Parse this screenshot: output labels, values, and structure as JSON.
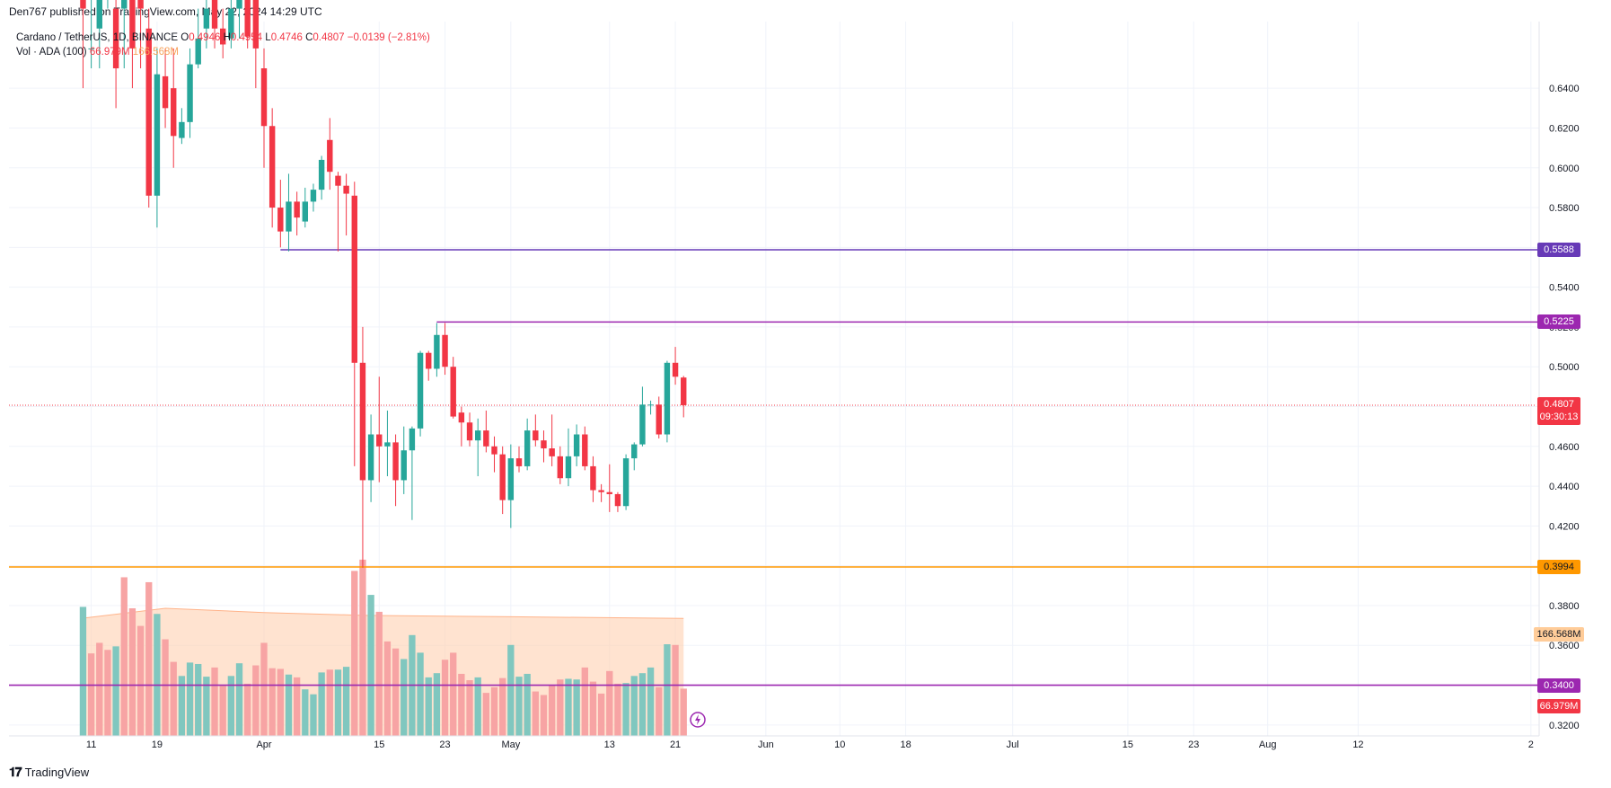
{
  "header": {
    "published": "Den767 published on TradingView.com, May 22, 2024 14:29 UTC"
  },
  "legend": {
    "symbol": "Cardano / TetherUS, 1D, BINANCE",
    "o_label": "O",
    "o_value": "0.4946",
    "h_label": "H",
    "h_value": "0.4954",
    "l_label": "L",
    "l_value": "0.4746",
    "c_label": "C",
    "c_value": "0.4807",
    "change": "−0.0139 (−2.81%)",
    "volume_label": "Vol · ADA (100)",
    "volume_value": "66.979M",
    "volume_ma": "166.568M"
  },
  "footer": {
    "brand": "TradingView"
  },
  "colors": {
    "up": "#26a69a",
    "down": "#f23645",
    "grid": "#f0f3fa",
    "line_5588": "#673ab7",
    "line_5225": "#9c27b0",
    "line_3994": "#ff9800",
    "line_3400": "#9c27b0",
    "vol_up": "#80c7bf",
    "vol_down": "#f7a4a4",
    "vol_ma_fill": "#ffd0b0",
    "price_line": "#f23645"
  },
  "tags": {
    "t5588": "0.5588",
    "t5225": "0.5225",
    "t_last": "0.4807",
    "t_countdown": "09:30:13",
    "t3994": "0.3994",
    "t_volma": "166.568M",
    "t3400": "0.3400",
    "t_vol": "66.979M"
  },
  "chart_data": {
    "type": "candlestick",
    "symbol": "Cardano / TetherUS",
    "interval": "1D",
    "exchange": "BINANCE",
    "y_axis_ticks": [
      0.32,
      0.34,
      0.36,
      0.38,
      0.4,
      0.42,
      0.44,
      0.46,
      0.48,
      0.5,
      0.52,
      0.54,
      0.56,
      0.58,
      0.6,
      0.62,
      0.64
    ],
    "y_tick_labels": [
      "0.3200",
      "0.3400",
      "0.3600",
      "0.3800",
      "0.4000",
      "0.4200",
      "0.4400",
      "0.4600",
      "0.4800",
      "0.5000",
      "0.5200",
      "0.5400",
      "0.5600",
      "0.5800",
      "0.6000",
      "0.6200",
      "0.6400"
    ],
    "ylim": [
      0.3145,
      0.6735
    ],
    "x_tick_labels": [
      "11",
      "19",
      "Apr",
      "15",
      "23",
      "May",
      "13",
      "21",
      "Jun",
      "10",
      "18",
      "Jul",
      "15",
      "23",
      "Aug",
      "12",
      "2"
    ],
    "x_tick_dates": [
      "2024-03-11",
      "2024-03-19",
      "2024-04-01",
      "2024-04-15",
      "2024-04-23",
      "2024-05-01",
      "2024-05-13",
      "2024-05-21",
      "2024-06-01",
      "2024-06-10",
      "2024-06-18",
      "2024-07-01",
      "2024-07-15",
      "2024-07-23",
      "2024-08-01",
      "2024-08-12",
      "2024-09-02"
    ],
    "xlim": [
      "2024-03-01",
      "2024-09-03"
    ],
    "horizontal_levels": [
      0.5588,
      0.5225,
      0.3994,
      0.34
    ],
    "last_price": 0.4807,
    "candles": [
      {
        "d": "2024-03-10",
        "o": 0.69,
        "h": 0.7,
        "l": 0.64,
        "c": 0.68
      },
      {
        "d": "2024-03-11",
        "o": 0.66,
        "h": 0.69,
        "l": 0.65,
        "c": 0.66
      },
      {
        "d": "2024-03-12",
        "o": 0.67,
        "h": 0.7,
        "l": 0.65,
        "c": 0.69
      },
      {
        "d": "2024-03-13",
        "o": 0.7,
        "h": 0.72,
        "l": 0.68,
        "c": 0.7
      },
      {
        "d": "2024-03-14",
        "o": 0.68,
        "h": 0.69,
        "l": 0.63,
        "c": 0.65
      },
      {
        "d": "2024-03-15",
        "o": 0.68,
        "h": 0.7,
        "l": 0.65,
        "c": 0.69
      },
      {
        "d": "2024-03-16",
        "o": 0.69,
        "h": 0.7,
        "l": 0.64,
        "c": 0.66
      },
      {
        "d": "2024-03-17",
        "o": 0.69,
        "h": 0.7,
        "l": 0.65,
        "c": 0.68
      },
      {
        "d": "2024-03-18",
        "o": 0.67,
        "h": 0.68,
        "l": 0.58,
        "c": 0.586
      },
      {
        "d": "2024-03-19",
        "o": 0.586,
        "h": 0.66,
        "l": 0.57,
        "c": 0.647
      },
      {
        "d": "2024-03-20",
        "o": 0.646,
        "h": 0.66,
        "l": 0.62,
        "c": 0.63
      },
      {
        "d": "2024-03-21",
        "o": 0.64,
        "h": 0.66,
        "l": 0.6,
        "c": 0.616
      },
      {
        "d": "2024-03-22",
        "o": 0.615,
        "h": 0.63,
        "l": 0.612,
        "c": 0.623
      },
      {
        "d": "2024-03-23",
        "o": 0.623,
        "h": 0.66,
        "l": 0.615,
        "c": 0.652
      },
      {
        "d": "2024-03-24",
        "o": 0.652,
        "h": 0.68,
        "l": 0.65,
        "c": 0.665
      },
      {
        "d": "2024-03-25",
        "o": 0.67,
        "h": 0.69,
        "l": 0.66,
        "c": 0.68
      },
      {
        "d": "2024-03-26",
        "o": 0.69,
        "h": 0.7,
        "l": 0.66,
        "c": 0.67
      },
      {
        "d": "2024-03-27",
        "o": 0.67,
        "h": 0.68,
        "l": 0.655,
        "c": 0.662
      },
      {
        "d": "2024-03-28",
        "o": 0.665,
        "h": 0.685,
        "l": 0.66,
        "c": 0.68
      },
      {
        "d": "2024-03-29",
        "o": 0.68,
        "h": 0.7,
        "l": 0.665,
        "c": 0.69
      },
      {
        "d": "2024-03-30",
        "o": 0.69,
        "h": 0.7,
        "l": 0.66,
        "c": 0.666
      },
      {
        "d": "2024-03-31",
        "o": 0.69,
        "h": 0.7,
        "l": 0.64,
        "c": 0.66
      },
      {
        "d": "2024-04-01",
        "o": 0.65,
        "h": 0.66,
        "l": 0.6,
        "c": 0.621
      },
      {
        "d": "2024-04-02",
        "o": 0.621,
        "h": 0.63,
        "l": 0.57,
        "c": 0.58
      },
      {
        "d": "2024-04-03",
        "o": 0.58,
        "h": 0.594,
        "l": 0.56,
        "c": 0.568
      },
      {
        "d": "2024-04-04",
        "o": 0.568,
        "h": 0.597,
        "l": 0.558,
        "c": 0.583
      },
      {
        "d": "2024-04-05",
        "o": 0.583,
        "h": 0.588,
        "l": 0.566,
        "c": 0.575
      },
      {
        "d": "2024-04-06",
        "o": 0.573,
        "h": 0.59,
        "l": 0.57,
        "c": 0.583
      },
      {
        "d": "2024-04-07",
        "o": 0.583,
        "h": 0.592,
        "l": 0.578,
        "c": 0.589
      },
      {
        "d": "2024-04-08",
        "o": 0.589,
        "h": 0.606,
        "l": 0.584,
        "c": 0.604
      },
      {
        "d": "2024-04-09",
        "o": 0.614,
        "h": 0.625,
        "l": 0.589,
        "c": 0.598
      },
      {
        "d": "2024-04-10",
        "o": 0.596,
        "h": 0.598,
        "l": 0.558,
        "c": 0.591
      },
      {
        "d": "2024-04-11",
        "o": 0.591,
        "h": 0.597,
        "l": 0.566,
        "c": 0.587
      },
      {
        "d": "2024-04-12",
        "o": 0.586,
        "h": 0.593,
        "l": 0.45,
        "c": 0.502
      },
      {
        "d": "2024-04-13",
        "o": 0.502,
        "h": 0.52,
        "l": 0.399,
        "c": 0.443
      },
      {
        "d": "2024-04-14",
        "o": 0.443,
        "h": 0.476,
        "l": 0.432,
        "c": 0.466
      },
      {
        "d": "2024-04-15",
        "o": 0.466,
        "h": 0.495,
        "l": 0.442,
        "c": 0.46
      },
      {
        "d": "2024-04-16",
        "o": 0.46,
        "h": 0.478,
        "l": 0.445,
        "c": 0.462
      },
      {
        "d": "2024-04-17",
        "o": 0.462,
        "h": 0.466,
        "l": 0.43,
        "c": 0.443
      },
      {
        "d": "2024-04-18",
        "o": 0.443,
        "h": 0.47,
        "l": 0.436,
        "c": 0.458
      },
      {
        "d": "2024-04-19",
        "o": 0.458,
        "h": 0.47,
        "l": 0.423,
        "c": 0.469
      },
      {
        "d": "2024-04-20",
        "o": 0.469,
        "h": 0.508,
        "l": 0.465,
        "c": 0.507
      },
      {
        "d": "2024-04-21",
        "o": 0.507,
        "h": 0.508,
        "l": 0.493,
        "c": 0.499
      },
      {
        "d": "2024-04-22",
        "o": 0.499,
        "h": 0.522,
        "l": 0.495,
        "c": 0.516
      },
      {
        "d": "2024-04-23",
        "o": 0.516,
        "h": 0.522,
        "l": 0.496,
        "c": 0.5
      },
      {
        "d": "2024-04-24",
        "o": 0.5,
        "h": 0.505,
        "l": 0.474,
        "c": 0.475
      },
      {
        "d": "2024-04-25",
        "o": 0.477,
        "h": 0.48,
        "l": 0.46,
        "c": 0.472
      },
      {
        "d": "2024-04-26",
        "o": 0.472,
        "h": 0.477,
        "l": 0.46,
        "c": 0.463
      },
      {
        "d": "2024-04-27",
        "o": 0.463,
        "h": 0.474,
        "l": 0.445,
        "c": 0.468
      },
      {
        "d": "2024-04-28",
        "o": 0.468,
        "h": 0.478,
        "l": 0.457,
        "c": 0.46
      },
      {
        "d": "2024-04-29",
        "o": 0.46,
        "h": 0.465,
        "l": 0.447,
        "c": 0.456
      },
      {
        "d": "2024-04-30",
        "o": 0.456,
        "h": 0.46,
        "l": 0.426,
        "c": 0.433
      },
      {
        "d": "2024-05-01",
        "o": 0.433,
        "h": 0.461,
        "l": 0.419,
        "c": 0.454
      },
      {
        "d": "2024-05-02",
        "o": 0.454,
        "h": 0.46,
        "l": 0.447,
        "c": 0.45
      },
      {
        "d": "2024-05-03",
        "o": 0.45,
        "h": 0.474,
        "l": 0.448,
        "c": 0.468
      },
      {
        "d": "2024-05-04",
        "o": 0.468,
        "h": 0.476,
        "l": 0.46,
        "c": 0.463
      },
      {
        "d": "2024-05-05",
        "o": 0.463,
        "h": 0.468,
        "l": 0.452,
        "c": 0.459
      },
      {
        "d": "2024-05-06",
        "o": 0.459,
        "h": 0.476,
        "l": 0.45,
        "c": 0.455
      },
      {
        "d": "2024-05-07",
        "o": 0.455,
        "h": 0.46,
        "l": 0.441,
        "c": 0.444
      },
      {
        "d": "2024-05-08",
        "o": 0.444,
        "h": 0.469,
        "l": 0.44,
        "c": 0.455
      },
      {
        "d": "2024-05-09",
        "o": 0.455,
        "h": 0.471,
        "l": 0.45,
        "c": 0.466
      },
      {
        "d": "2024-05-10",
        "o": 0.466,
        "h": 0.47,
        "l": 0.448,
        "c": 0.45
      },
      {
        "d": "2024-05-11",
        "o": 0.45,
        "h": 0.455,
        "l": 0.432,
        "c": 0.438
      },
      {
        "d": "2024-05-12",
        "o": 0.438,
        "h": 0.441,
        "l": 0.432,
        "c": 0.437
      },
      {
        "d": "2024-05-13",
        "o": 0.437,
        "h": 0.451,
        "l": 0.427,
        "c": 0.436
      },
      {
        "d": "2024-05-14",
        "o": 0.436,
        "h": 0.437,
        "l": 0.427,
        "c": 0.43
      },
      {
        "d": "2024-05-15",
        "o": 0.43,
        "h": 0.456,
        "l": 0.428,
        "c": 0.454
      },
      {
        "d": "2024-05-16",
        "o": 0.454,
        "h": 0.462,
        "l": 0.448,
        "c": 0.461
      },
      {
        "d": "2024-05-17",
        "o": 0.461,
        "h": 0.49,
        "l": 0.46,
        "c": 0.481
      },
      {
        "d": "2024-05-18",
        "o": 0.481,
        "h": 0.483,
        "l": 0.476,
        "c": 0.481
      },
      {
        "d": "2024-05-19",
        "o": 0.481,
        "h": 0.485,
        "l": 0.464,
        "c": 0.466
      },
      {
        "d": "2024-05-20",
        "o": 0.466,
        "h": 0.503,
        "l": 0.462,
        "c": 0.502
      },
      {
        "d": "2024-05-21",
        "o": 0.502,
        "h": 0.51,
        "l": 0.491,
        "c": 0.495
      },
      {
        "d": "2024-05-22",
        "o": 0.4946,
        "h": 0.4954,
        "l": 0.4746,
        "c": 0.4807
      }
    ],
    "volume": [
      {
        "d": "2024-03-10",
        "v": 183,
        "up": true
      },
      {
        "d": "2024-03-11",
        "v": 117,
        "up": false
      },
      {
        "d": "2024-03-12",
        "v": 132,
        "up": false
      },
      {
        "d": "2024-03-13",
        "v": 122,
        "up": false
      },
      {
        "d": "2024-03-14",
        "v": 127,
        "up": true
      },
      {
        "d": "2024-03-15",
        "v": 225,
        "up": false
      },
      {
        "d": "2024-03-16",
        "v": 181,
        "up": false
      },
      {
        "d": "2024-03-17",
        "v": 156,
        "up": false
      },
      {
        "d": "2024-03-18",
        "v": 218,
        "up": false
      },
      {
        "d": "2024-03-19",
        "v": 173,
        "up": true
      },
      {
        "d": "2024-03-20",
        "v": 137,
        "up": false
      },
      {
        "d": "2024-03-21",
        "v": 105,
        "up": false
      },
      {
        "d": "2024-03-22",
        "v": 85,
        "up": true
      },
      {
        "d": "2024-03-23",
        "v": 104,
        "up": true
      },
      {
        "d": "2024-03-24",
        "v": 102,
        "up": true
      },
      {
        "d": "2024-03-25",
        "v": 84,
        "up": true
      },
      {
        "d": "2024-03-26",
        "v": 97,
        "up": false
      },
      {
        "d": "2024-03-27",
        "v": 71,
        "up": false
      },
      {
        "d": "2024-03-28",
        "v": 85,
        "up": true
      },
      {
        "d": "2024-03-29",
        "v": 103,
        "up": true
      },
      {
        "d": "2024-03-30",
        "v": 74,
        "up": false
      },
      {
        "d": "2024-03-31",
        "v": 100,
        "up": false
      },
      {
        "d": "2024-04-01",
        "v": 132,
        "up": false
      },
      {
        "d": "2024-04-02",
        "v": 96,
        "up": false
      },
      {
        "d": "2024-04-03",
        "v": 95,
        "up": false
      },
      {
        "d": "2024-04-04",
        "v": 87,
        "up": true
      },
      {
        "d": "2024-04-05",
        "v": 83,
        "up": false
      },
      {
        "d": "2024-04-06",
        "v": 66,
        "up": true
      },
      {
        "d": "2024-04-07",
        "v": 59,
        "up": true
      },
      {
        "d": "2024-04-08",
        "v": 90,
        "up": true
      },
      {
        "d": "2024-04-09",
        "v": 94,
        "up": false
      },
      {
        "d": "2024-04-10",
        "v": 94,
        "up": true
      },
      {
        "d": "2024-04-11",
        "v": 98,
        "up": true
      },
      {
        "d": "2024-04-12",
        "v": 234,
        "up": false
      },
      {
        "d": "2024-04-13",
        "v": 250,
        "up": false
      },
      {
        "d": "2024-04-14",
        "v": 200,
        "up": true
      },
      {
        "d": "2024-04-15",
        "v": 176,
        "up": false
      },
      {
        "d": "2024-04-16",
        "v": 134,
        "up": false
      },
      {
        "d": "2024-04-17",
        "v": 124,
        "up": false
      },
      {
        "d": "2024-04-18",
        "v": 109,
        "up": true
      },
      {
        "d": "2024-04-19",
        "v": 143,
        "up": true
      },
      {
        "d": "2024-04-20",
        "v": 118,
        "up": true
      },
      {
        "d": "2024-04-21",
        "v": 83,
        "up": true
      },
      {
        "d": "2024-04-22",
        "v": 89,
        "up": true
      },
      {
        "d": "2024-04-23",
        "v": 108,
        "up": false
      },
      {
        "d": "2024-04-24",
        "v": 118,
        "up": false
      },
      {
        "d": "2024-04-25",
        "v": 88,
        "up": false
      },
      {
        "d": "2024-04-26",
        "v": 79,
        "up": false
      },
      {
        "d": "2024-04-27",
        "v": 83,
        "up": true
      },
      {
        "d": "2024-04-28",
        "v": 61,
        "up": false
      },
      {
        "d": "2024-04-29",
        "v": 69,
        "up": false
      },
      {
        "d": "2024-04-30",
        "v": 82,
        "up": false
      },
      {
        "d": "2024-05-01",
        "v": 129,
        "up": true
      },
      {
        "d": "2024-05-02",
        "v": 84,
        "up": true
      },
      {
        "d": "2024-05-03",
        "v": 88,
        "up": true
      },
      {
        "d": "2024-05-04",
        "v": 63,
        "up": false
      },
      {
        "d": "2024-05-05",
        "v": 58,
        "up": false
      },
      {
        "d": "2024-05-06",
        "v": 72,
        "up": false
      },
      {
        "d": "2024-05-07",
        "v": 80,
        "up": false
      },
      {
        "d": "2024-05-08",
        "v": 81,
        "up": true
      },
      {
        "d": "2024-05-09",
        "v": 80,
        "up": true
      },
      {
        "d": "2024-05-10",
        "v": 97,
        "up": false
      },
      {
        "d": "2024-05-11",
        "v": 77,
        "up": false
      },
      {
        "d": "2024-05-12",
        "v": 60,
        "up": false
      },
      {
        "d": "2024-05-13",
        "v": 92,
        "up": false
      },
      {
        "d": "2024-05-14",
        "v": 74,
        "up": false
      },
      {
        "d": "2024-05-15",
        "v": 75,
        "up": true
      },
      {
        "d": "2024-05-16",
        "v": 85,
        "up": true
      },
      {
        "d": "2024-05-17",
        "v": 89,
        "up": true
      },
      {
        "d": "2024-05-18",
        "v": 97,
        "up": true
      },
      {
        "d": "2024-05-19",
        "v": 69,
        "up": false
      },
      {
        "d": "2024-05-20",
        "v": 130,
        "up": true
      },
      {
        "d": "2024-05-21",
        "v": 129,
        "up": false
      },
      {
        "d": "2024-05-22",
        "v": 67,
        "up": false
      }
    ],
    "volume_ma_100": [
      {
        "d": "2024-03-10",
        "v": 167
      },
      {
        "d": "2024-03-20",
        "v": 181
      },
      {
        "d": "2024-04-01",
        "v": 175
      },
      {
        "d": "2024-04-13",
        "v": 171
      },
      {
        "d": "2024-05-01",
        "v": 169
      },
      {
        "d": "2024-05-22",
        "v": 166.568
      }
    ],
    "volume_ylim": [
      0,
      260
    ]
  }
}
